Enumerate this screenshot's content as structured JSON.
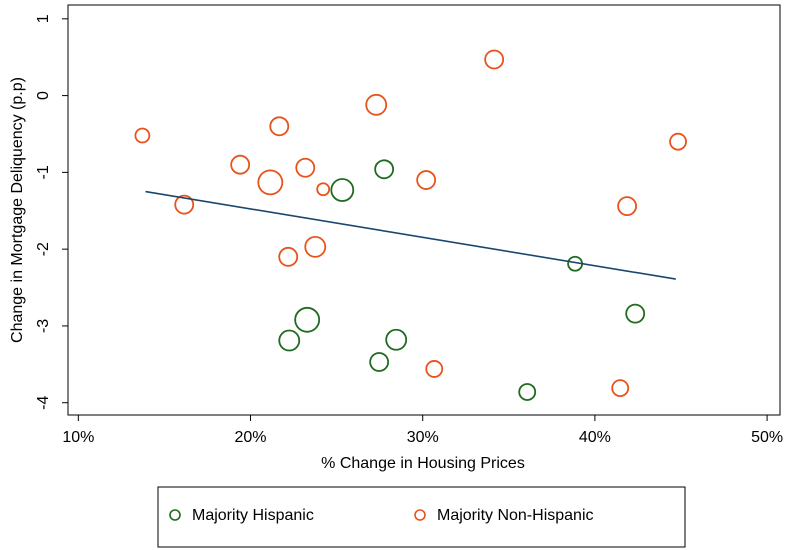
{
  "chart_data": {
    "type": "scatter",
    "x_label": "% Change in Housing Prices",
    "y_label": "Change in Mortgage Deliquency (p.p)",
    "xlim": [
      9.4,
      50.75
    ],
    "ylim": [
      -4.16,
      1.18
    ],
    "xticks": [
      {
        "value": 10,
        "label": "10%"
      },
      {
        "value": 20,
        "label": "20%"
      },
      {
        "value": 30,
        "label": "30%"
      },
      {
        "value": 40,
        "label": "40%"
      },
      {
        "value": 50,
        "label": "50%"
      }
    ],
    "yticks": [
      -4,
      -3,
      -2,
      -1,
      0,
      1
    ],
    "legend": "bottom",
    "series": [
      {
        "name": "Majority Hispanic",
        "color": "#1f6b1f",
        "x": [
          25.33,
          27.76,
          38.85,
          42.34,
          23.29,
          22.25,
          28.46,
          27.47,
          36.07
        ],
        "y": [
          -1.23,
          -0.96,
          -2.19,
          -2.84,
          -2.92,
          -3.19,
          -3.18,
          -3.47,
          -3.86
        ],
        "size": [
          11,
          9,
          7,
          9,
          12,
          10,
          10,
          9,
          8
        ]
      },
      {
        "name": "Majority Non-Hispanic",
        "color": "#e8531c",
        "x": [
          13.72,
          16.15,
          19.4,
          21.15,
          21.67,
          23.18,
          24.22,
          22.19,
          23.76,
          27.3,
          30.2,
          34.15,
          41.87,
          44.83,
          30.67,
          41.47
        ],
        "y": [
          -0.52,
          -1.42,
          -0.9,
          -1.13,
          -0.4,
          -0.94,
          -1.22,
          -2.1,
          -1.97,
          -0.12,
          -1.1,
          0.47,
          -1.44,
          -0.6,
          -3.56,
          -3.81
        ],
        "size": [
          7,
          9,
          9,
          12,
          9,
          9,
          6,
          9,
          10,
          10,
          9,
          9,
          9,
          8,
          8,
          8
        ]
      }
    ],
    "fit_line": {
      "color": "#1a476f",
      "x": [
        13.9,
        44.7
      ],
      "y": [
        -1.25,
        -2.39
      ]
    }
  }
}
